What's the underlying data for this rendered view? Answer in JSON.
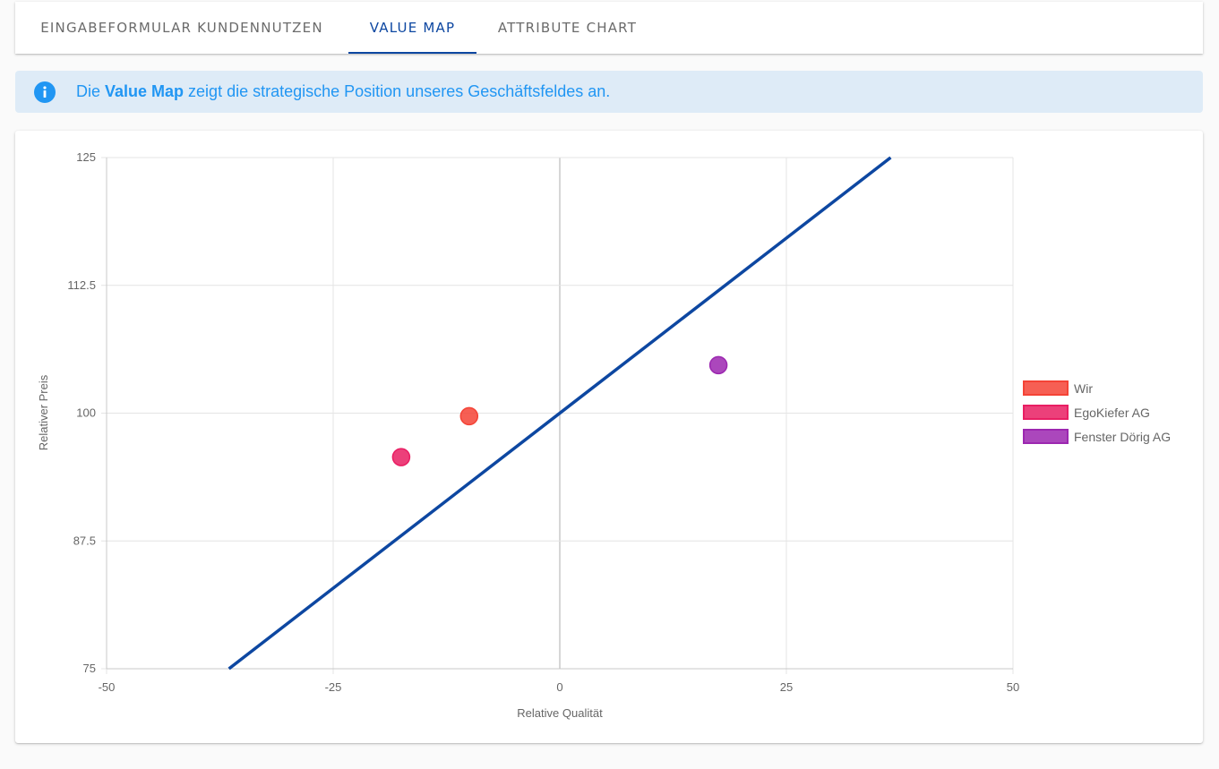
{
  "tabs": [
    {
      "label": "Eingabeformular Kundennutzen",
      "active": false
    },
    {
      "label": "Value Map",
      "active": true
    },
    {
      "label": "Attribute Chart",
      "active": false
    }
  ],
  "info": {
    "icon": "info-icon",
    "prefix": "Die ",
    "bold": "Value Map",
    "suffix": " zeigt die strategische Position unseres Geschäftsfeldes an."
  },
  "colors": {
    "accent": "#0d47a1",
    "info_text": "#2196f3",
    "line": "#0d47a1"
  },
  "chart_data": {
    "type": "scatter",
    "xlabel": "Relative Qualität",
    "ylabel": "Relativer Preis",
    "xlim": [
      -50,
      50
    ],
    "ylim": [
      75,
      125
    ],
    "x_ticks": [
      "-50",
      "-25",
      "0",
      "25",
      "50"
    ],
    "y_ticks": [
      "75",
      "87.5",
      "100",
      "112.5",
      "125"
    ],
    "grid": true,
    "legend_position": "right",
    "value_line": {
      "points": [
        [
          -36.5,
          75
        ],
        [
          36.5,
          125
        ]
      ]
    },
    "series": [
      {
        "name": "Wir",
        "color": "#f44336",
        "x": -10,
        "y": 99.7
      },
      {
        "name": "EgoKiefer AG",
        "color": "#e91e63",
        "x": -17.5,
        "y": 95.7
      },
      {
        "name": "Fenster Dörig AG",
        "color": "#9c27b0",
        "x": 17.5,
        "y": 104.7
      }
    ]
  }
}
